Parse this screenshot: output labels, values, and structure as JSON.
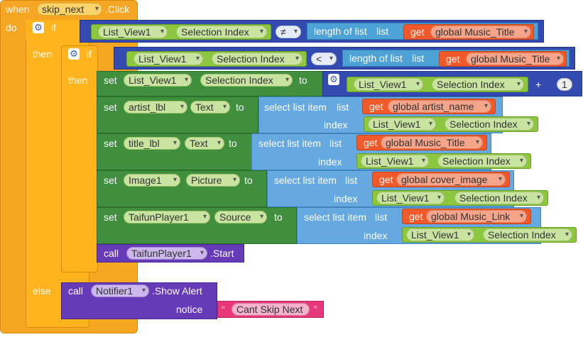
{
  "event": {
    "when": "when",
    "component": "skip_next",
    "event_name": ".Click"
  },
  "labels": {
    "do": "do",
    "if": "if",
    "then": "then",
    "else": "else",
    "set": "set",
    "to": "to",
    "get": "get",
    "call": "call",
    "index": "index",
    "notice": "notice"
  },
  "outer_if": {
    "left_component": "List_View1",
    "left_property": "Selection Index",
    "operator": "≠",
    "length_label": "length of list",
    "list_label": "list",
    "get_var": "global Music_Title"
  },
  "inner_if": {
    "left_component": "List_View1",
    "left_property": "Selection Index",
    "operator": "<",
    "length_label": "length of list",
    "list_label": "list",
    "get_var": "global Music_Title"
  },
  "set_index": {
    "component": "List_View1",
    "property": "Selection Index",
    "value_component": "List_View1",
    "value_property": "Selection Index",
    "plus": "+",
    "number": "1"
  },
  "sets": [
    {
      "component": "artist_lbl",
      "property": "Text",
      "select_label": "select list item",
      "list_label": "list",
      "get_var": "global artist_name",
      "index_component": "List_View1",
      "index_property": "Selection Index"
    },
    {
      "component": "title_lbl",
      "property": "Text",
      "select_label": "select list item",
      "list_label": "list",
      "get_var": "global Music_Title",
      "index_component": "List_View1",
      "index_property": "Selection Index"
    },
    {
      "component": "Image1",
      "property": "Picture",
      "select_label": "select list item",
      "list_label": "list",
      "get_var": "global cover_image",
      "index_component": "List_View1",
      "index_property": "Selection Index"
    },
    {
      "component": "TaifunPlayer1",
      "property": "Source",
      "select_label": "select list item",
      "list_label": "list",
      "get_var": "global Music_Link",
      "index_component": "List_View1",
      "index_property": "Selection Index"
    }
  ],
  "call_start": {
    "component": "TaifunPlayer1",
    "method": ".Start"
  },
  "else_call": {
    "component": "Notifier1",
    "method": ".Show Alert",
    "notice_text": "Cant Skip Next",
    "quote_open": "“",
    "quote_close": "”"
  },
  "colors": {
    "control": "#ffb41e",
    "set": "#3f8f3f",
    "get": "#f05a2a",
    "list": "#65a9e0",
    "logic": "#334bb0",
    "purple": "#673ab7",
    "string": "#e7387a"
  }
}
